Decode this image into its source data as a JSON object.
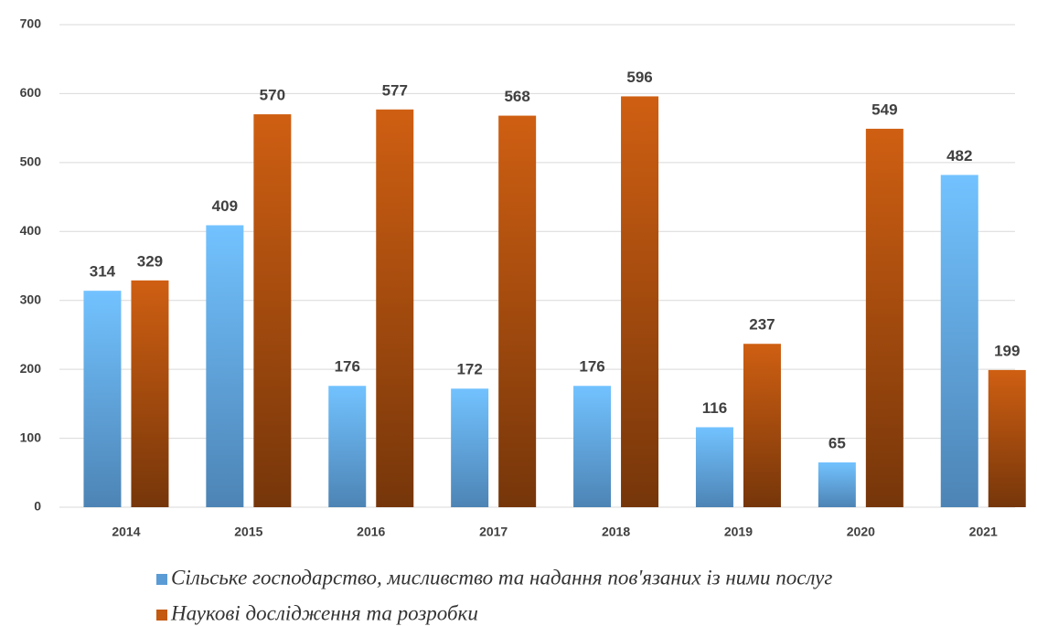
{
  "chart_data": {
    "type": "bar",
    "categories": [
      "2014",
      "2015",
      "2016",
      "2017",
      "2018",
      "2019",
      "2020",
      "2021"
    ],
    "series": [
      {
        "name": "Сільське господарство, мисливство та надання пов'язаних із ними послуг",
        "color": "#5b9bd5",
        "values": [
          314,
          409,
          176,
          172,
          176,
          116,
          65,
          482
        ]
      },
      {
        "name": "Наукові дослідження та розробки",
        "color": "#c55a11",
        "values": [
          329,
          570,
          577,
          568,
          596,
          237,
          549,
          199
        ]
      }
    ],
    "ylim": [
      0,
      700
    ],
    "yticks": [
      0,
      100,
      200,
      300,
      400,
      500,
      600,
      700
    ],
    "grid": true,
    "legend": "bottom"
  }
}
